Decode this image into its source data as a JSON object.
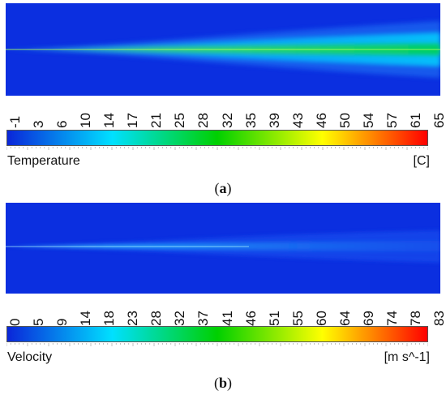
{
  "panels": [
    {
      "caption_open": "(",
      "caption_letter": "a",
      "caption_close": ")",
      "quantity": "Temperature",
      "unit": "[C]",
      "ticks": [
        "-1",
        "3",
        "6",
        "10",
        "14",
        "17",
        "21",
        "25",
        "28",
        "32",
        "35",
        "39",
        "43",
        "46",
        "50",
        "54",
        "57",
        "61",
        "65"
      ],
      "colors": [
        "#0a26d9",
        "#00e0ff",
        "#00d000",
        "#ffff00",
        "#ff0000"
      ]
    },
    {
      "caption_open": "(",
      "caption_letter": "b",
      "caption_close": ")",
      "quantity": "Velocity",
      "unit": "[m s^-1]",
      "ticks": [
        "0",
        "5",
        "9",
        "14",
        "18",
        "23",
        "28",
        "32",
        "37",
        "41",
        "46",
        "51",
        "55",
        "60",
        "64",
        "69",
        "74",
        "78",
        "83"
      ],
      "colors": [
        "#0a26d9",
        "#00e0ff",
        "#00d000",
        "#ffff00",
        "#ff0000"
      ]
    }
  ]
}
